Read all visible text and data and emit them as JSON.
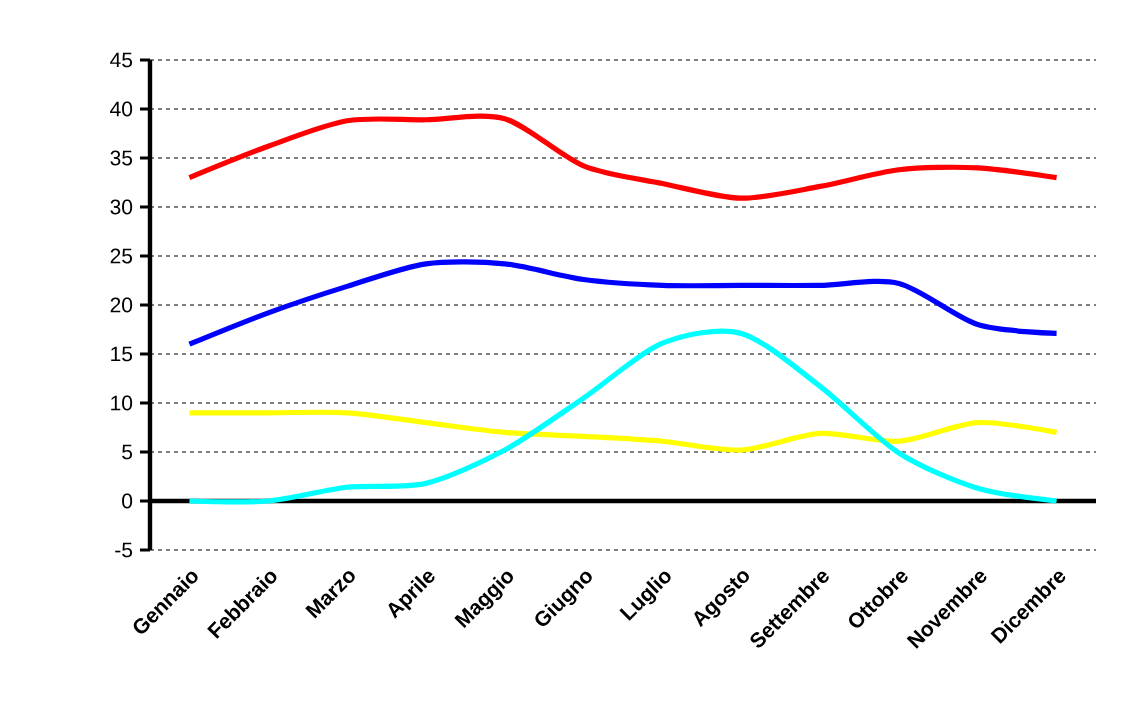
{
  "chart_data": {
    "type": "line",
    "categories": [
      "Gennaio",
      "Febbraio",
      "Marzo",
      "Aprile",
      "Maggio",
      "Giugno",
      "Luglio",
      "Agosto",
      "Settembre",
      "Ottobre",
      "Novembre",
      "Dicembre"
    ],
    "series": [
      {
        "color": "#ff0000",
        "values": [
          33,
          36.2,
          38.8,
          38.9,
          39,
          34.2,
          32.4,
          30.9,
          32.1,
          33.8,
          34,
          33
        ]
      },
      {
        "color": "#0000ff",
        "values": [
          16,
          19.2,
          21.9,
          24.2,
          24.2,
          22.6,
          22,
          22,
          22,
          22.2,
          18,
          17.1
        ]
      },
      {
        "color": "#ffff00",
        "values": [
          9,
          9,
          9,
          8,
          7,
          6.6,
          6.1,
          5.2,
          6.9,
          6.1,
          8,
          7
        ]
      },
      {
        "color": "#00ffff",
        "values": [
          0,
          0,
          1.4,
          1.8,
          5.2,
          10.5,
          16.1,
          17.1,
          11.7,
          4.9,
          1.3,
          0
        ]
      }
    ],
    "ylim": [
      -5,
      45
    ],
    "yticks": [
      -5,
      0,
      5,
      10,
      15,
      20,
      25,
      30,
      35,
      40,
      45
    ],
    "grid": "y",
    "marker": "none",
    "line_style": "solid"
  }
}
